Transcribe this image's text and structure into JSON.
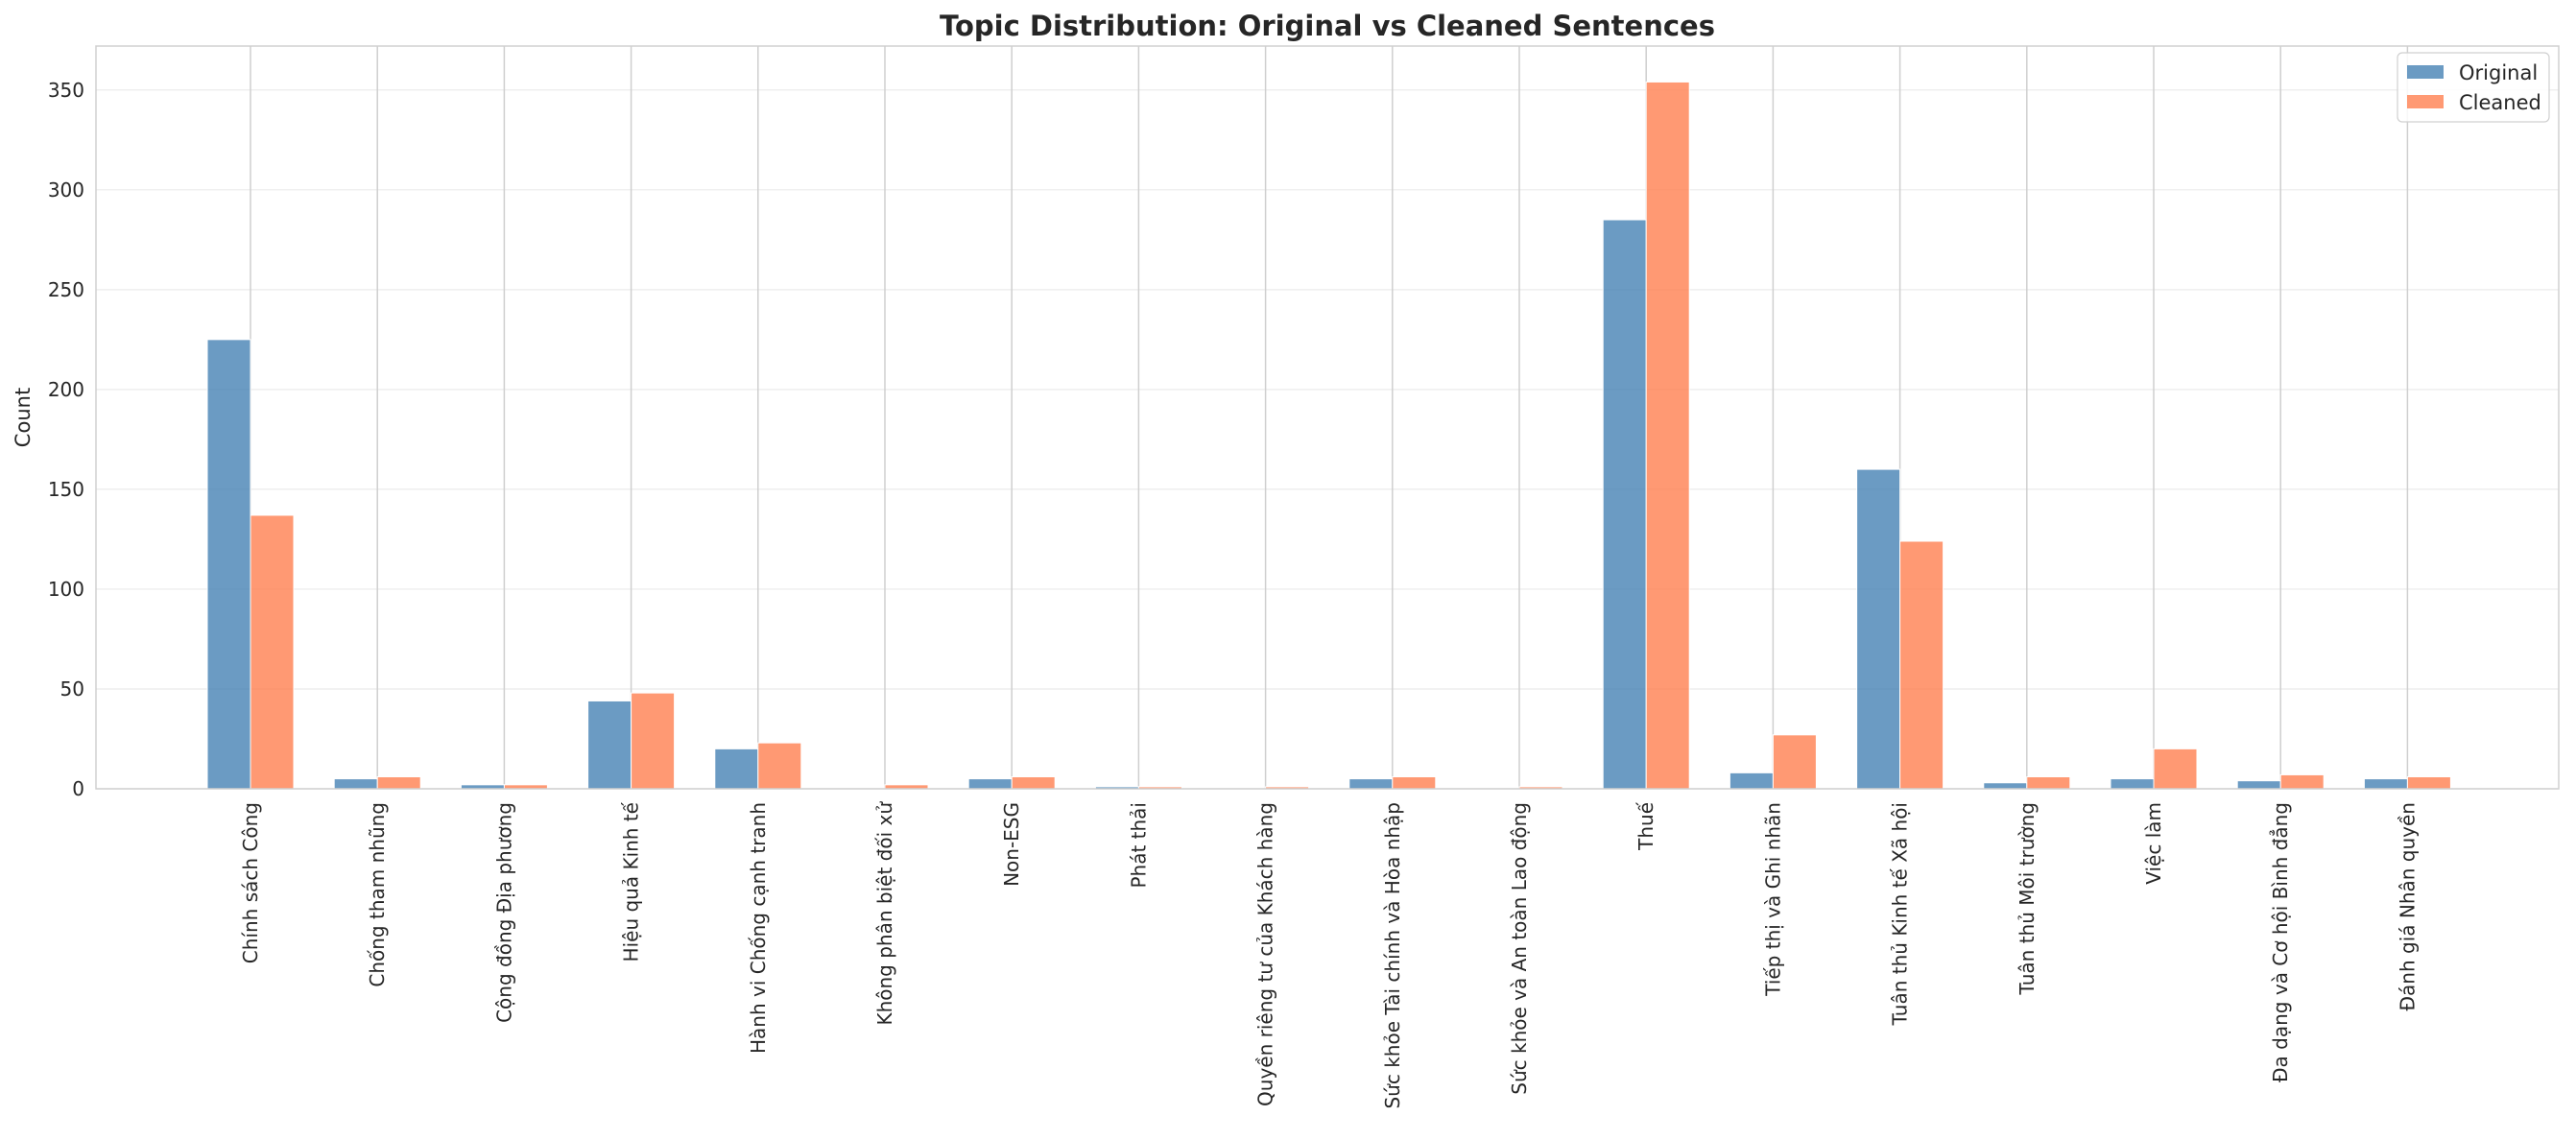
{
  "chart_data": {
    "type": "bar",
    "title": "Topic Distribution: Original vs Cleaned Sentences",
    "xlabel": "",
    "ylabel": "Count",
    "ylim": [
      0,
      372
    ],
    "yticks": [
      0,
      50,
      100,
      150,
      200,
      250,
      300,
      350
    ],
    "grid": true,
    "legend_position": "top-right",
    "categories": [
      "Chính sách Công",
      "Chống tham nhũng",
      "Cộng đồng Địa phương",
      "Hiệu quả Kinh tế",
      "Hành vi Chống cạnh tranh",
      "Không phân biệt đối xử",
      "Non-ESG",
      "Phát thải",
      "Quyền riêng tư của Khách hàng",
      "Sức khỏe Tài chính và Hòa nhập",
      "Sức khỏe và An toàn Lao động",
      "Thuế",
      "Tiếp thị và Ghi nhãn",
      "Tuân thủ Kinh tế Xã hội",
      "Tuân thủ Môi trường",
      "Việc làm",
      "Đa dạng và Cơ hội Bình đẳng",
      "Đánh giá Nhân quyền"
    ],
    "series": [
      {
        "name": "Original",
        "color": "#4682b4",
        "values": [
          225,
          5,
          2,
          44,
          20,
          0,
          5,
          1,
          0,
          5,
          0,
          285,
          8,
          160,
          3,
          5,
          4,
          5
        ]
      },
      {
        "name": "Cleaned",
        "color": "#ff7f50",
        "values": [
          137,
          6,
          2,
          48,
          23,
          2,
          6,
          1,
          1,
          6,
          1,
          354,
          27,
          124,
          6,
          20,
          7,
          6
        ]
      }
    ]
  }
}
